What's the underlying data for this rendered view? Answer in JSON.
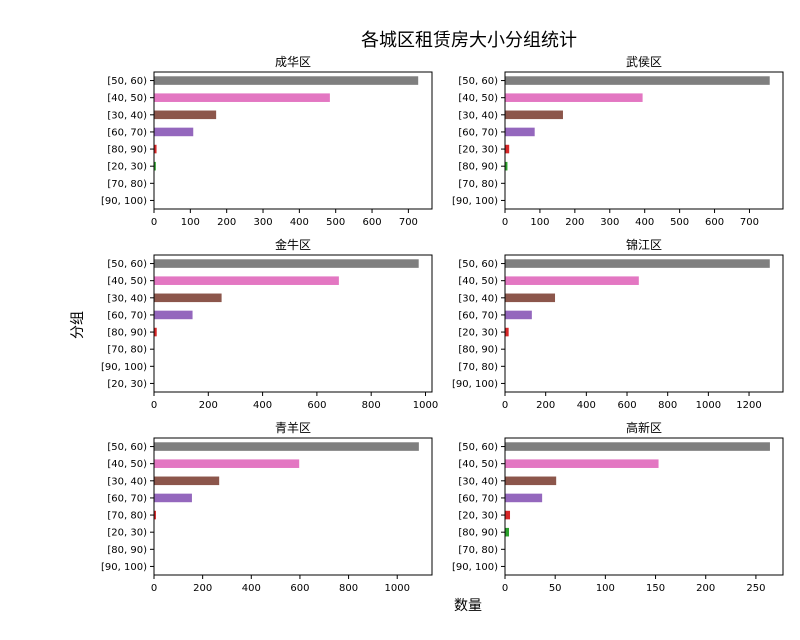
{
  "title": "各城区租赁房大小分组统计",
  "xlabel": "数量",
  "ylabel": "分组",
  "chart_data": [
    {
      "type": "bar",
      "title": "成华区",
      "categories": [
        "[50, 60)",
        "[40, 50)",
        "[30, 40)",
        "[60, 70)",
        "[80, 90)",
        "[20, 30)",
        "[70, 80)",
        "[90, 100)"
      ],
      "values": [
        727,
        484,
        171,
        108,
        7,
        5,
        0,
        0
      ],
      "colors": [
        "#7f7f7f",
        "#e377c2",
        "#8c564b",
        "#9467bd",
        "#d62728",
        "#2ca02c",
        "#ff7f0e",
        "#1f77b4"
      ],
      "xlim": [
        0,
        765
      ],
      "xticks": [
        0,
        100,
        200,
        300,
        400,
        500,
        600,
        700
      ]
    },
    {
      "type": "bar",
      "title": "武侯区",
      "categories": [
        "[50, 60)",
        "[40, 50)",
        "[30, 40)",
        "[60, 70)",
        "[20, 30)",
        "[80, 90)",
        "[70, 80)",
        "[90, 100)"
      ],
      "values": [
        758,
        394,
        166,
        85,
        12,
        7,
        0,
        0
      ],
      "colors": [
        "#7f7f7f",
        "#e377c2",
        "#8c564b",
        "#9467bd",
        "#d62728",
        "#2ca02c",
        "#ff7f0e",
        "#1f77b4"
      ],
      "xlim": [
        0,
        796
      ],
      "xticks": [
        0,
        100,
        200,
        300,
        400,
        500,
        600,
        700
      ]
    },
    {
      "type": "bar",
      "title": "金牛区",
      "categories": [
        "[50, 60)",
        "[40, 50)",
        "[30, 40)",
        "[60, 70)",
        "[80, 90)",
        "[70, 80)",
        "[90, 100)",
        "[20, 30)"
      ],
      "values": [
        975,
        681,
        249,
        142,
        10,
        0,
        0,
        0
      ],
      "colors": [
        "#7f7f7f",
        "#e377c2",
        "#8c564b",
        "#9467bd",
        "#d62728",
        "#2ca02c",
        "#ff7f0e",
        "#1f77b4"
      ],
      "xlim": [
        0,
        1024
      ],
      "xticks": [
        0,
        200,
        400,
        600,
        800,
        1000
      ]
    },
    {
      "type": "bar",
      "title": "锦江区",
      "categories": [
        "[50, 60)",
        "[40, 50)",
        "[30, 40)",
        "[60, 70)",
        "[20, 30)",
        "[80, 90)",
        "[70, 80)",
        "[90, 100)"
      ],
      "values": [
        1302,
        658,
        246,
        132,
        18,
        0,
        0,
        0
      ],
      "colors": [
        "#7f7f7f",
        "#e377c2",
        "#8c564b",
        "#9467bd",
        "#d62728",
        "#2ca02c",
        "#ff7f0e",
        "#1f77b4"
      ],
      "xlim": [
        0,
        1367
      ],
      "xticks": [
        0,
        200,
        400,
        600,
        800,
        1000,
        1200
      ]
    },
    {
      "type": "bar",
      "title": "青羊区",
      "categories": [
        "[50, 60)",
        "[40, 50)",
        "[30, 40)",
        "[60, 70)",
        "[70, 80)",
        "[20, 30)",
        "[80, 90)",
        "[90, 100)"
      ],
      "values": [
        1089,
        597,
        268,
        156,
        8,
        0,
        0,
        0
      ],
      "colors": [
        "#7f7f7f",
        "#e377c2",
        "#8c564b",
        "#9467bd",
        "#d62728",
        "#2ca02c",
        "#ff7f0e",
        "#1f77b4"
      ],
      "xlim": [
        0,
        1143
      ],
      "xticks": [
        0,
        200,
        400,
        600,
        800,
        1000
      ]
    },
    {
      "type": "bar",
      "title": "高新区",
      "categories": [
        "[50, 60)",
        "[40, 50)",
        "[30, 40)",
        "[60, 70)",
        "[20, 30)",
        "[80, 90)",
        "[70, 80)",
        "[90, 100)"
      ],
      "values": [
        264,
        153,
        51,
        37,
        5,
        4,
        0,
        0
      ],
      "colors": [
        "#7f7f7f",
        "#e377c2",
        "#8c564b",
        "#9467bd",
        "#d62728",
        "#2ca02c",
        "#ff7f0e",
        "#1f77b4"
      ],
      "xlim": [
        0,
        277
      ],
      "xticks": [
        0,
        50,
        100,
        150,
        200,
        250
      ]
    }
  ]
}
